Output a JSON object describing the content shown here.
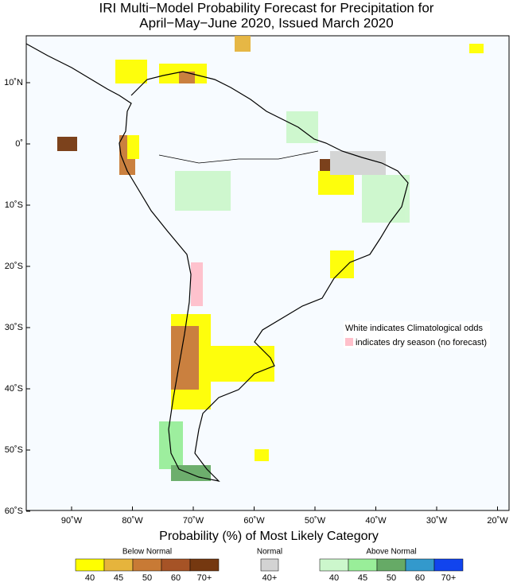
{
  "title": [
    "IRI Multi−Model Probability Forecast for Precipitation for",
    "April−May−June 2020, Issued March 2020"
  ],
  "map": {
    "lat_labels": [
      "10˚N",
      "0˚",
      "10˚S",
      "20˚S",
      "30˚S",
      "40˚S",
      "50˚S",
      "60˚S"
    ],
    "lon_labels": [
      "90˚W",
      "80˚W",
      "70˚W",
      "60˚W",
      "50˚W",
      "40˚W",
      "30˚W",
      "20˚W"
    ],
    "note": [
      "White indicates Climatological odds",
      "indicates dry season (no forecast)"
    ]
  },
  "legend": {
    "title": "Probability (%) of Most Likely Category",
    "groups": [
      {
        "name": "Below Normal",
        "labels": [
          "40",
          "45",
          "50",
          "60",
          "70+"
        ],
        "colors": [
          "#ffff00",
          "#e6b43c",
          "#c87a35",
          "#a65326",
          "#753810"
        ]
      },
      {
        "name": "Normal",
        "labels": [
          "40+"
        ],
        "colors": [
          "#d3d3d3"
        ]
      },
      {
        "name": "Above Normal",
        "labels": [
          "40",
          "45",
          "50",
          "60",
          "70+"
        ],
        "colors": [
          "#ccf7cc",
          "#99ee99",
          "#66aa66",
          "#3399cc",
          "#1144ee"
        ]
      }
    ]
  }
}
